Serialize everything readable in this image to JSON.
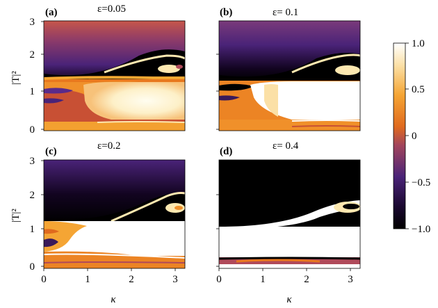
{
  "chart_data": [
    {
      "type": "heatmap",
      "panel": "(a)",
      "title": "ε=0.05",
      "xlabel": "",
      "ylabel": "|T|²",
      "xlim": [
        0,
        3.1416
      ],
      "ylim": [
        0,
        3
      ],
      "xticks": [],
      "yticks": [
        "0",
        "1",
        "2",
        "3"
      ],
      "regions": [
        {
          "desc": "upper band",
          "y_range": [
            1.4,
            3.0
          ],
          "value_range": [
            -0.6,
            0.2
          ]
        },
        {
          "desc": "dark tongue",
          "x_range": [
            1.5,
            3.14
          ],
          "y_range": [
            1.5,
            2.1
          ],
          "value": -1.0
        },
        {
          "desc": "bright island",
          "x_range": [
            1.2,
            3.14
          ],
          "y_range": [
            0.2,
            1.3
          ],
          "value": 0.95
        },
        {
          "desc": "lower band",
          "y_range": [
            0.0,
            0.2
          ],
          "value": 0.0
        }
      ]
    },
    {
      "type": "heatmap",
      "panel": "(b)",
      "title": "ε= 0.1",
      "xlabel": "",
      "ylabel": "",
      "xlim": [
        0,
        3.1416
      ],
      "ylim": [
        0,
        3
      ],
      "xticks": [],
      "yticks": [],
      "regions": [
        {
          "desc": "upper band",
          "y_range": [
            1.4,
            3.0
          ],
          "value_range": [
            -1.0,
            -0.3
          ]
        },
        {
          "desc": "bright island",
          "x_range": [
            1.0,
            3.14
          ],
          "y_range": [
            0.2,
            1.3
          ],
          "value": 1.0
        },
        {
          "desc": "lower band",
          "y_range": [
            0.0,
            0.2
          ],
          "value": 0.0
        }
      ]
    },
    {
      "type": "heatmap",
      "panel": "(c)",
      "title": "ε=0.2",
      "xlabel": "κ",
      "ylabel": "|T|²",
      "xlim": [
        0,
        3.1416
      ],
      "ylim": [
        0,
        3
      ],
      "xticks": [
        "0",
        "1",
        "2",
        "3"
      ],
      "yticks": [
        "0",
        "1",
        "2",
        "3"
      ],
      "regions": [
        {
          "desc": "upper band",
          "y_range": [
            1.3,
            3.0
          ],
          "value_range": [
            -1.0,
            -0.6
          ]
        },
        {
          "desc": "bright region",
          "x_range": [
            0.5,
            3.14
          ],
          "y_range": [
            0.2,
            1.3
          ],
          "value": 1.0
        },
        {
          "desc": "lower band",
          "y_range": [
            0.0,
            0.2
          ],
          "value": 0.0
        }
      ]
    },
    {
      "type": "heatmap",
      "panel": "(d)",
      "title": "ε= 0.4",
      "xlabel": "κ",
      "ylabel": "",
      "xlim": [
        0,
        3.1416
      ],
      "ylim": [
        0,
        3
      ],
      "xticks": [
        "0",
        "1",
        "2",
        "3"
      ],
      "yticks": [],
      "regions": [
        {
          "desc": "upper band",
          "y_range": [
            1.1,
            3.0
          ],
          "value": -1.0
        },
        {
          "desc": "bright region",
          "x_range": [
            0,
            3.14
          ],
          "y_range": [
            0.2,
            1.1
          ],
          "value": 1.0
        },
        {
          "desc": "lower band",
          "y_range": [
            0.0,
            0.2
          ],
          "value": -0.2
        }
      ]
    }
  ],
  "colorbar": {
    "ticks": [
      "1.0",
      "0.5",
      "0",
      "−0.5",
      "−1.0"
    ],
    "tick_values": [
      1.0,
      0.5,
      0,
      -0.5,
      -1.0
    ],
    "range": [
      -1.0,
      1.0
    ],
    "colors": [
      "#000000",
      "#2a0a3a",
      "#5a2a8a",
      "#b04a5a",
      "#e8701a",
      "#f6a832",
      "#fde8b0",
      "#ffffff"
    ]
  }
}
